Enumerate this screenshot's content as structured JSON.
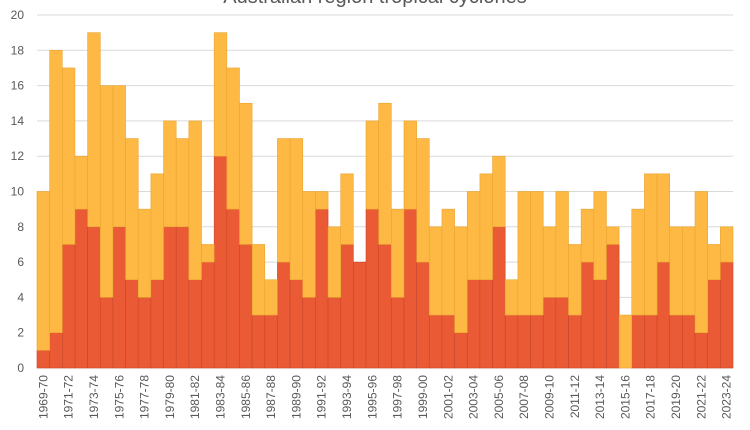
{
  "chart_data": {
    "type": "stacked_bar",
    "title": "Australian region tropical cyclones",
    "categories": [
      "1969-70",
      null,
      "1971-72",
      null,
      "1973-74",
      null,
      "1975-76",
      null,
      "1977-78",
      null,
      "1979-80",
      null,
      "1981-82",
      null,
      "1983-84",
      null,
      "1985-86",
      null,
      "1987-88",
      null,
      "1989-90",
      null,
      "1991-92",
      null,
      "1993-94",
      null,
      "1995-96",
      null,
      "1997-98",
      null,
      "1999-00",
      null,
      "2001-02",
      null,
      "2003-04",
      null,
      "2005-06",
      null,
      "2007-08",
      null,
      "2009-10",
      null,
      "2011-12",
      null,
      "2013-14",
      null,
      "2015-16",
      null,
      "2017-18",
      null,
      "2019-20",
      null,
      "2021-22",
      null,
      "2023-24"
    ],
    "series": [
      {
        "color": "#e95a35",
        "values": [
          1,
          2,
          7,
          9,
          8,
          4,
          8,
          5,
          4,
          5,
          8,
          8,
          5,
          6,
          12,
          9,
          7,
          3,
          3,
          6,
          5,
          4,
          9,
          4,
          7,
          6,
          9,
          7,
          4,
          9,
          6,
          3,
          3,
          2,
          5,
          5,
          8,
          3,
          3,
          3,
          4,
          4,
          3,
          6,
          5,
          7,
          0,
          3,
          3,
          6,
          3,
          3,
          2,
          5,
          6
        ]
      },
      {
        "color": "#fdb944",
        "values": [
          9,
          16,
          10,
          3,
          11,
          12,
          8,
          8,
          5,
          6,
          6,
          5,
          9,
          1,
          7,
          8,
          8,
          4,
          2,
          7,
          8,
          6,
          1,
          4,
          4,
          0,
          5,
          8,
          5,
          5,
          7,
          5,
          6,
          6,
          5,
          6,
          4,
          2,
          7,
          7,
          4,
          6,
          4,
          3,
          5,
          1,
          3,
          6,
          8,
          5,
          5,
          5,
          8,
          2,
          2
        ]
      }
    ],
    "ylim": [
      0,
      20
    ],
    "yticks": [
      0,
      2,
      4,
      6,
      8,
      10,
      12,
      14,
      16,
      18,
      20
    ],
    "grid": true
  }
}
